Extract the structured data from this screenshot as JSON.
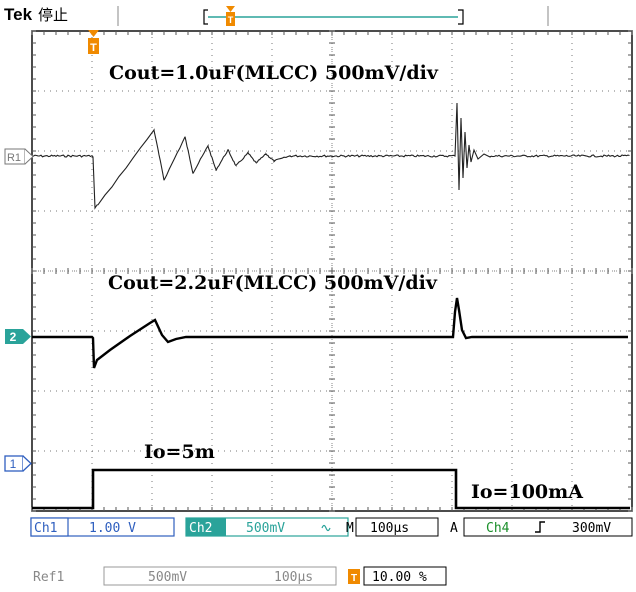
{
  "header": {
    "brand": "Tek",
    "run_state": "停止",
    "trigger_position_icon": "trigger-position-marker-icon"
  },
  "waveform_area": {
    "trigger_marker_label": "T",
    "ref1_label": "R1",
    "ch2_label": "2",
    "ch1_label": "1",
    "annotations": {
      "cout_1uF": "Cout=1.0uF(MLCC) 500mV/div",
      "cout_2_2uF": "Cout=2.2uF(MLCC) 500mV/div",
      "io_low": "Io=5m",
      "io_high": "Io=100mA"
    }
  },
  "status_bar": {
    "ch1_name": "Ch1",
    "ch1_scale": "1.00 V",
    "ch2_name": "Ch2",
    "ch2_scale": "500mV",
    "ch2_bw_icon": "bandwidth-limit-icon",
    "timebase_label": "M",
    "timebase_value": "100µs",
    "trigger_mode": "A",
    "trigger_source": "Ch4",
    "trigger_slope_icon": "rising-edge-icon",
    "trigger_level": "300mV"
  },
  "ref_bar": {
    "ref_name": "Ref1",
    "ref_scale": "500mV",
    "ref_time": "100µs",
    "trigger_icon_label": "T",
    "trigger_position": "10.00 %"
  },
  "colors": {
    "ch1_marker": "#2f5fbf",
    "ch2_marker": "#2aa39a",
    "ch4_text": "#1a8f2a",
    "frame": "#000000",
    "trigger_orange": "#f08a00",
    "graticule": "#555555"
  }
}
